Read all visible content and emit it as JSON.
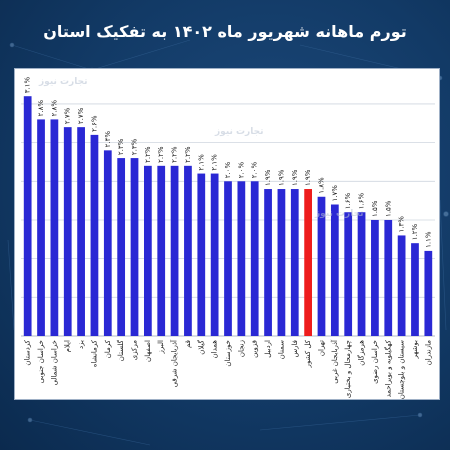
{
  "title": "تورم ماهانه شهریور ماه ۱۴۰۲ به تفکیک استان",
  "watermark": "تجارت نیوز",
  "colors": {
    "bar": "#2a28d4",
    "highlight": "#ee1c1c",
    "background": "#123a66"
  },
  "chart_data": {
    "type": "bar",
    "title": "تورم ماهانه شهریور ماه ۱۴۰۲ به تفکیک استان",
    "xlabel": "",
    "ylabel": "",
    "ylim": [
      0,
      3.4
    ],
    "grid": true,
    "legend": "none",
    "highlight_category": "کل کشور",
    "categories": [
      "کردستان",
      "خراسان جنوبی",
      "خراسان شمالی",
      "ایلام",
      "یزد",
      "کرمانشاه",
      "کرمان",
      "گلستان",
      "مرکزی",
      "اصفهان",
      "البرز",
      "آذربایجان شرقی",
      "قم",
      "گیلان",
      "همدان",
      "خوزستان",
      "زنجان",
      "قزوین",
      "اردبیل",
      "سمنان",
      "فارس",
      "کل کشور",
      "تهران",
      "آذربایجان غربی",
      "چهارمحال و بختیاری",
      "هرمزگان",
      "خراسان رضوی",
      "کهگیلویه و بویراحمد",
      "سیستان و بلوچستان",
      "بوشهر",
      "مازندران"
    ],
    "values": [
      3.1,
      2.8,
      2.8,
      2.7,
      2.7,
      2.6,
      2.4,
      2.3,
      2.3,
      2.2,
      2.2,
      2.2,
      2.2,
      2.1,
      2.1,
      2.0,
      2.0,
      2.0,
      1.9,
      1.9,
      1.9,
      1.9,
      1.8,
      1.7,
      1.6,
      1.6,
      1.5,
      1.5,
      1.3,
      1.2,
      1.1
    ],
    "value_labels": [
      "۳.۱%",
      "۲.۸%",
      "۲.۸%",
      "۲.۷%",
      "۲.۷%",
      "۲.۶%",
      "۲.۴%",
      "۲.۳%",
      "۲.۳%",
      "۲.۲%",
      "۲.۲%",
      "۲.۲%",
      "۲.۲%",
      "۲.۱%",
      "۲.۱%",
      "۲.۰%",
      "۲.۰%",
      "۲.۰%",
      "۱.۹%",
      "۱.۹%",
      "۱.۹%",
      "۱.۹%",
      "۱.۸%",
      "۱.۷%",
      "۱.۶%",
      "۱.۶%",
      "۱.۵%",
      "۱.۵%",
      "۱.۳%",
      "۱.۲%",
      "۱.۱%"
    ]
  }
}
